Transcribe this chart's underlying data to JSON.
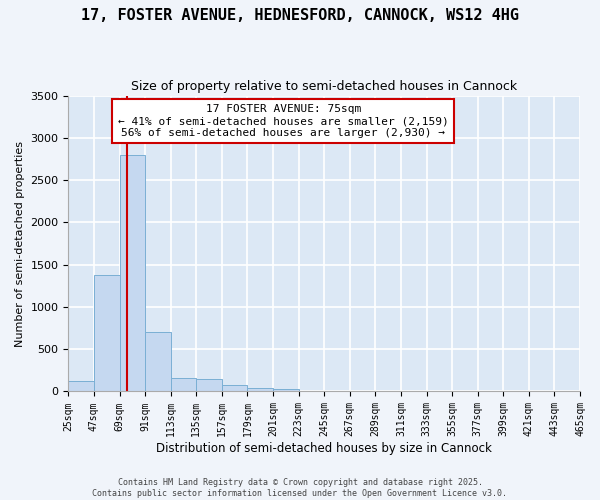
{
  "title": "17, FOSTER AVENUE, HEDNESFORD, CANNOCK, WS12 4HG",
  "subtitle": "Size of property relative to semi-detached houses in Cannock",
  "xlabel": "Distribution of semi-detached houses by size in Cannock",
  "ylabel": "Number of semi-detached properties",
  "annotation_line1": "17 FOSTER AVENUE: 75sqm",
  "annotation_line2": "← 41% of semi-detached houses are smaller (2,159)",
  "annotation_line3": "56% of semi-detached houses are larger (2,930) →",
  "bin_edges": [
    25,
    47,
    69,
    91,
    113,
    135,
    157,
    179,
    201,
    223,
    245,
    267,
    289,
    311,
    333,
    355,
    377,
    399,
    421,
    443,
    465
  ],
  "bar_heights": [
    120,
    1380,
    2800,
    700,
    160,
    145,
    80,
    40,
    30,
    5,
    2,
    1,
    1,
    0,
    0,
    0,
    0,
    0,
    0,
    0
  ],
  "bar_color": "#c5d8f0",
  "bar_edge_color": "#7aafd4",
  "red_line_x": 75,
  "red_line_color": "#cc0000",
  "annotation_box_color": "#cc0000",
  "ylim": [
    0,
    3500
  ],
  "yticks": [
    0,
    500,
    1000,
    1500,
    2000,
    2500,
    3000,
    3500
  ],
  "plot_bg_color": "#dce8f5",
  "figure_bg_color": "#f0f4fa",
  "grid_color": "#ffffff",
  "footer_line1": "Contains HM Land Registry data © Crown copyright and database right 2025.",
  "footer_line2": "Contains public sector information licensed under the Open Government Licence v3.0."
}
